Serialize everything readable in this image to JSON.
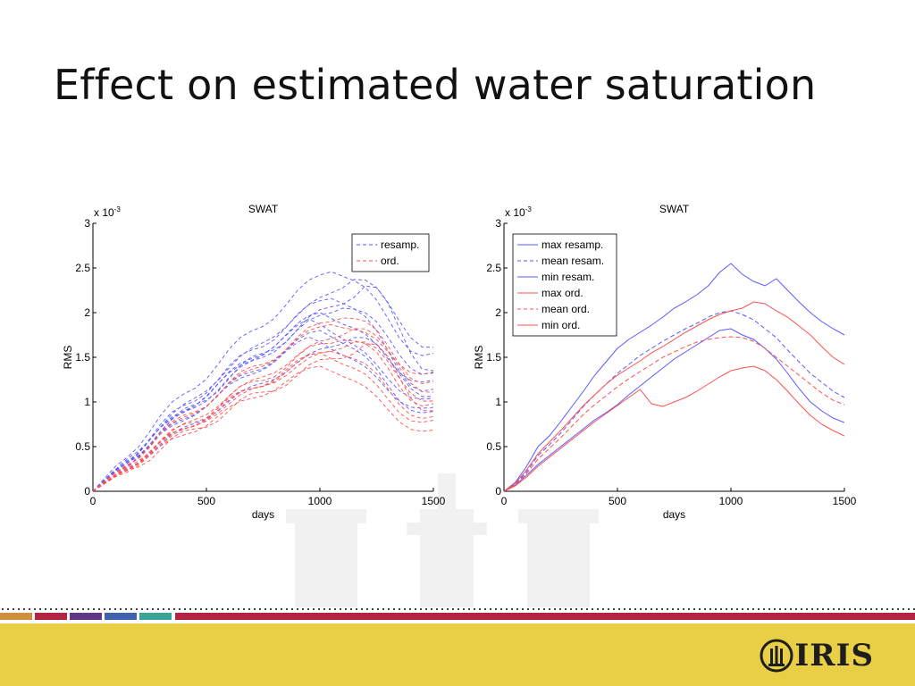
{
  "slide": {
    "title": "Effect on estimated water saturation",
    "logo_text": "IRIS"
  },
  "colors": {
    "background": "#ffffff",
    "footer_yellow": "#e8cf45",
    "band_orange": "#cf8f3b",
    "band_crimson": "#b32443",
    "band_purple": "#5f3985",
    "band_blue": "#3f63ae",
    "band_teal": "#3aa395",
    "resamp_blue": "#5a5aff",
    "ord_red": "#ff5050"
  },
  "chart_data": [
    {
      "type": "line",
      "title": "SWAT",
      "xlabel": "days",
      "ylabel": "RMS",
      "scale_label": "x 10",
      "scale_exp": "-3",
      "xlim": [
        0,
        1500
      ],
      "ylim": [
        0,
        3
      ],
      "xticks": [
        0,
        500,
        1000,
        1500
      ],
      "yticks": [
        0,
        0.5,
        1,
        1.5,
        2,
        2.5,
        3
      ],
      "ytick_labels": [
        "0",
        "0.5",
        "1",
        "1.5",
        "2",
        "2.5",
        "3"
      ],
      "grid": false,
      "legend_position": "top-right",
      "legend": [
        {
          "label": "resamp.",
          "color": "#5a5aff",
          "dash": "dashed"
        },
        {
          "label": "ord.",
          "color": "#ff5050",
          "dash": "dashed"
        }
      ],
      "ensemble": {
        "resamp": {
          "color": "#5a5aff",
          "count": 10,
          "peak_x": [
            950,
            1000,
            1050,
            1150,
            1000,
            1200,
            950,
            1100,
            1050,
            1150
          ],
          "peak_y": [
            1.7,
            2.0,
            2.2,
            2.4,
            1.8,
            2.3,
            1.9,
            2.1,
            2.5,
            1.75
          ],
          "end_y": [
            0.9,
            1.2,
            1.1,
            1.6,
            0.85,
            1.35,
            1.0,
            1.3,
            1.5,
            1.05
          ]
        },
        "ord": {
          "color": "#ff5050",
          "count": 9,
          "peak_x": [
            1000,
            1050,
            1100,
            1150,
            1000,
            1100,
            1150,
            1050,
            1200
          ],
          "peak_y": [
            1.4,
            1.6,
            1.75,
            1.85,
            1.55,
            2.0,
            1.7,
            1.9,
            1.65
          ],
          "end_y": [
            0.65,
            0.8,
            0.95,
            1.1,
            0.75,
            1.2,
            1.0,
            1.3,
            0.9
          ]
        }
      }
    },
    {
      "type": "line",
      "title": "SWAT",
      "xlabel": "days",
      "ylabel": "RMS",
      "scale_label": "x 10",
      "scale_exp": "-3",
      "xlim": [
        0,
        1500
      ],
      "ylim": [
        0,
        3
      ],
      "xticks": [
        0,
        500,
        1000,
        1500
      ],
      "yticks": [
        0,
        0.5,
        1,
        1.5,
        2,
        2.5,
        3
      ],
      "ytick_labels": [
        "0",
        "0.5",
        "1",
        "1.5",
        "2",
        "2.5",
        "3"
      ],
      "grid": false,
      "legend_position": "top-left",
      "series": [
        {
          "name": "max resamp.",
          "color": "#5a5aff",
          "dash": "solid",
          "x": [
            0,
            50,
            100,
            150,
            200,
            250,
            300,
            350,
            400,
            450,
            500,
            550,
            600,
            650,
            700,
            750,
            800,
            850,
            900,
            950,
            1000,
            1050,
            1100,
            1150,
            1200,
            1250,
            1300,
            1350,
            1400,
            1450,
            1500
          ],
          "y": [
            0,
            0.1,
            0.28,
            0.5,
            0.62,
            0.78,
            0.95,
            1.12,
            1.3,
            1.45,
            1.6,
            1.7,
            1.78,
            1.86,
            1.95,
            2.05,
            2.12,
            2.2,
            2.3,
            2.45,
            2.55,
            2.43,
            2.35,
            2.3,
            2.38,
            2.25,
            2.12,
            2.0,
            1.9,
            1.82,
            1.75
          ]
        },
        {
          "name": "mean resam.",
          "color": "#5a5aff",
          "dash": "dashed",
          "x": [
            0,
            50,
            100,
            150,
            200,
            250,
            300,
            350,
            400,
            450,
            500,
            550,
            600,
            650,
            700,
            750,
            800,
            850,
            900,
            950,
            1000,
            1050,
            1100,
            1150,
            1200,
            1250,
            1300,
            1350,
            1400,
            1450,
            1500
          ],
          "y": [
            0,
            0.08,
            0.22,
            0.4,
            0.52,
            0.65,
            0.8,
            0.95,
            1.08,
            1.2,
            1.32,
            1.42,
            1.52,
            1.6,
            1.68,
            1.75,
            1.82,
            1.88,
            1.95,
            2.0,
            2.02,
            1.98,
            1.92,
            1.82,
            1.72,
            1.58,
            1.45,
            1.32,
            1.22,
            1.12,
            1.05
          ]
        },
        {
          "name": "min resam.",
          "color": "#5a5aff",
          "dash": "solid",
          "x": [
            0,
            50,
            100,
            150,
            200,
            250,
            300,
            350,
            400,
            450,
            500,
            550,
            600,
            650,
            700,
            750,
            800,
            850,
            900,
            950,
            1000,
            1050,
            1100,
            1150,
            1200,
            1250,
            1300,
            1350,
            1400,
            1450,
            1500
          ],
          "y": [
            0,
            0.07,
            0.18,
            0.3,
            0.4,
            0.5,
            0.6,
            0.7,
            0.8,
            0.88,
            0.97,
            1.08,
            1.18,
            1.28,
            1.38,
            1.48,
            1.56,
            1.64,
            1.72,
            1.8,
            1.82,
            1.75,
            1.7,
            1.6,
            1.48,
            1.32,
            1.15,
            1.0,
            0.9,
            0.82,
            0.77
          ]
        },
        {
          "name": "max ord.",
          "color": "#ff5050",
          "dash": "solid",
          "x": [
            0,
            50,
            100,
            150,
            200,
            250,
            300,
            350,
            400,
            450,
            500,
            550,
            600,
            650,
            700,
            750,
            800,
            850,
            900,
            950,
            1000,
            1050,
            1100,
            1150,
            1200,
            1250,
            1300,
            1350,
            1400,
            1450,
            1500
          ],
          "y": [
            0,
            0.09,
            0.24,
            0.42,
            0.55,
            0.68,
            0.82,
            0.96,
            1.08,
            1.2,
            1.3,
            1.38,
            1.46,
            1.55,
            1.62,
            1.7,
            1.78,
            1.85,
            1.92,
            1.98,
            2.02,
            2.05,
            2.12,
            2.1,
            2.02,
            1.95,
            1.85,
            1.75,
            1.62,
            1.5,
            1.42
          ]
        },
        {
          "name": "mean ord.",
          "color": "#ff5050",
          "dash": "dashed",
          "x": [
            0,
            50,
            100,
            150,
            200,
            250,
            300,
            350,
            400,
            450,
            500,
            550,
            600,
            650,
            700,
            750,
            800,
            850,
            900,
            950,
            1000,
            1050,
            1100,
            1150,
            1200,
            1250,
            1300,
            1350,
            1400,
            1450,
            1500
          ],
          "y": [
            0,
            0.07,
            0.2,
            0.36,
            0.48,
            0.6,
            0.73,
            0.86,
            0.97,
            1.07,
            1.17,
            1.26,
            1.34,
            1.42,
            1.5,
            1.56,
            1.62,
            1.67,
            1.7,
            1.72,
            1.73,
            1.72,
            1.68,
            1.6,
            1.5,
            1.4,
            1.3,
            1.2,
            1.1,
            1.02,
            0.97
          ]
        },
        {
          "name": "min ord.",
          "color": "#ff5050",
          "dash": "solid",
          "x": [
            0,
            50,
            100,
            150,
            200,
            250,
            300,
            350,
            400,
            450,
            500,
            550,
            600,
            650,
            700,
            750,
            800,
            850,
            900,
            950,
            1000,
            1050,
            1100,
            1150,
            1200,
            1250,
            1300,
            1350,
            1400,
            1450,
            1500
          ],
          "y": [
            0,
            0.06,
            0.16,
            0.28,
            0.38,
            0.48,
            0.58,
            0.68,
            0.78,
            0.87,
            0.96,
            1.05,
            1.14,
            0.98,
            0.95,
            1.0,
            1.05,
            1.12,
            1.2,
            1.28,
            1.35,
            1.38,
            1.4,
            1.35,
            1.25,
            1.12,
            0.98,
            0.85,
            0.75,
            0.68,
            0.62
          ]
        }
      ]
    }
  ]
}
